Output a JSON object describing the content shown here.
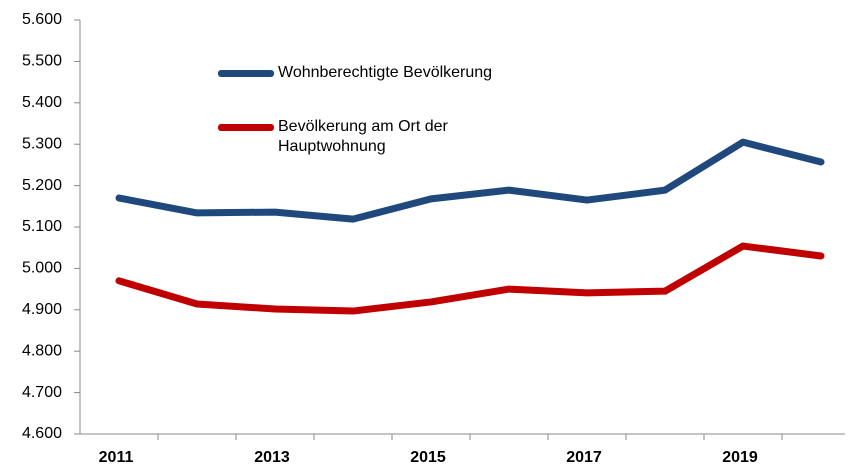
{
  "chart_data": {
    "type": "line",
    "categories": [
      "2011",
      null,
      "2013",
      null,
      "2015",
      null,
      "2017",
      null,
      "2019",
      null
    ],
    "series": [
      {
        "name": "Wohnberechtigte Bevölkerung",
        "color": "#1f497d",
        "values": [
          5170,
          5134,
          5136,
          5119,
          5168,
          5189,
          5165,
          5189,
          5305,
          5257
        ]
      },
      {
        "name": "Bevölkerung am Ort der Hauptwohnung",
        "color": "#c00000",
        "values": [
          4970,
          4914,
          4902,
          4897,
          4919,
          4950,
          4941,
          4945,
          5054,
          5030
        ]
      }
    ],
    "ylim": [
      4600,
      5600
    ],
    "yticks": [
      {
        "value": 4600,
        "label": "4.600"
      },
      {
        "value": 4700,
        "label": "4.700"
      },
      {
        "value": 4800,
        "label": "4.800"
      },
      {
        "value": 4900,
        "label": "4.900"
      },
      {
        "value": 5000,
        "label": "5.000"
      },
      {
        "value": 5100,
        "label": "5.100"
      },
      {
        "value": 5200,
        "label": "5.200"
      },
      {
        "value": 5300,
        "label": "5.300"
      },
      {
        "value": 5400,
        "label": "5.400"
      },
      {
        "value": 5500,
        "label": "5.500"
      },
      {
        "value": 5600,
        "label": "5.600"
      }
    ],
    "grid": false
  }
}
